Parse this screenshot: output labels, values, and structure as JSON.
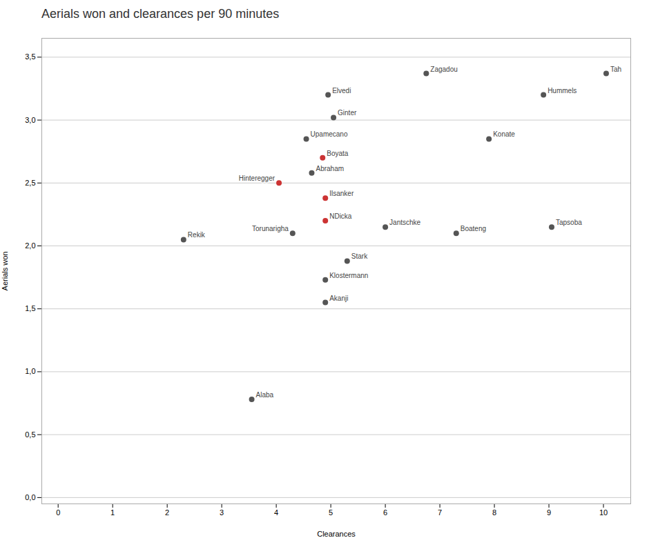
{
  "chart_data": {
    "type": "scatter",
    "title": "Aerials won and clearances per 90 minutes",
    "xlabel": "Clearances",
    "ylabel": "Aerials won",
    "xlim": [
      -0.3,
      10.5
    ],
    "ylim": [
      -0.05,
      3.65
    ],
    "xticks": [
      0,
      1,
      2,
      3,
      4,
      5,
      6,
      7,
      8,
      9,
      10
    ],
    "yticks": [
      {
        "value": 0.0,
        "label": "0,0"
      },
      {
        "value": 0.5,
        "label": "0,5"
      },
      {
        "value": 1.0,
        "label": "1,0"
      },
      {
        "value": 1.5,
        "label": "1,5"
      },
      {
        "value": 2.0,
        "label": "2,0"
      },
      {
        "value": 2.5,
        "label": "2,5"
      },
      {
        "value": 3.0,
        "label": "3,0"
      },
      {
        "value": 3.5,
        "label": "3,5"
      }
    ],
    "grid": "y",
    "labels": [
      "Elvedi",
      "Ginter",
      "Zagadou",
      "Tah",
      "Hummels",
      "Konate",
      "Upamecano",
      "Boyata",
      "Abraham",
      "Hinteregger",
      "Ilsanker",
      "NDicka",
      "Torunarigha",
      "Jantschke",
      "Rekik",
      "Boateng",
      "Tapsoba",
      "Stark",
      "Klostermann",
      "Akanji",
      "Alaba"
    ],
    "x": [
      4.95,
      5.05,
      6.75,
      10.05,
      8.9,
      7.9,
      4.55,
      4.85,
      4.65,
      4.05,
      4.9,
      4.9,
      4.3,
      6.0,
      2.3,
      7.3,
      9.05,
      5.3,
      4.9,
      4.9,
      3.55
    ],
    "values": [
      3.2,
      3.02,
      3.37,
      3.37,
      3.2,
      2.85,
      2.85,
      2.7,
      2.58,
      2.5,
      2.38,
      2.2,
      2.1,
      2.15,
      2.05,
      2.1,
      2.15,
      1.88,
      1.73,
      1.55,
      0.78
    ],
    "colors": [
      "#555555",
      "#555555",
      "#555555",
      "#555555",
      "#555555",
      "#555555",
      "#555555",
      "#cc3333",
      "#555555",
      "#cc3333",
      "#cc3333",
      "#cc3333",
      "#555555",
      "#555555",
      "#555555",
      "#555555",
      "#555555",
      "#555555",
      "#555555",
      "#555555",
      "#555555"
    ]
  }
}
